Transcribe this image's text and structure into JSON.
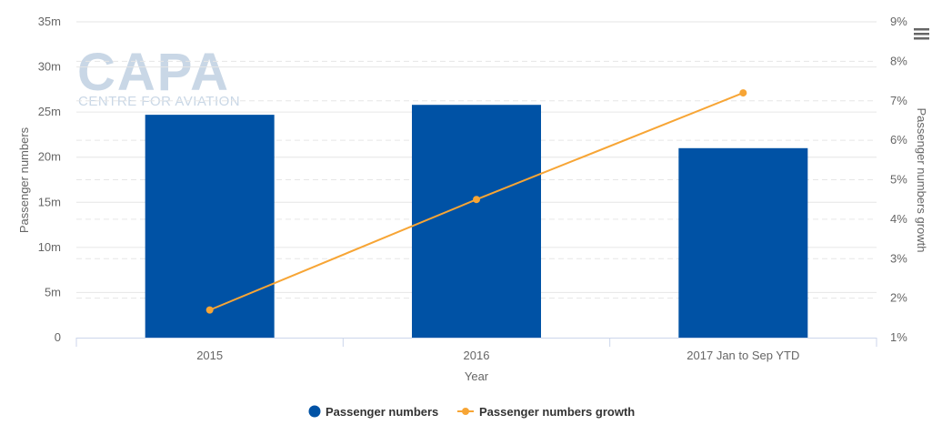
{
  "watermark": {
    "logo_text": "CAPA",
    "tagline": "CENTRE FOR AVIATION"
  },
  "menu_icon": "hamburger-menu-icon",
  "chart_data": {
    "type": "bar",
    "categories": [
      "2015",
      "2016",
      "2017 Jan to Sep YTD"
    ],
    "xlabel": "Year",
    "series": [
      {
        "name": "Passenger numbers",
        "type": "bar",
        "axis": "left",
        "color": "#0052a5",
        "values": [
          24700000,
          25800000,
          21000000
        ]
      },
      {
        "name": "Passenger numbers growth",
        "type": "line",
        "axis": "right",
        "color": "#f7a535",
        "values": [
          1.7,
          4.5,
          7.2
        ]
      }
    ],
    "y_left": {
      "label": "Passenger numbers",
      "range": [
        0,
        35000000
      ],
      "ticks": [
        0,
        5000000,
        10000000,
        15000000,
        20000000,
        25000000,
        30000000,
        35000000
      ],
      "tick_labels": [
        "0",
        "5m",
        "10m",
        "15m",
        "20m",
        "25m",
        "30m",
        "35m"
      ]
    },
    "y_right": {
      "label": "Passenger numbers growth",
      "range": [
        1,
        9
      ],
      "ticks": [
        1,
        2,
        3,
        4,
        5,
        6,
        7,
        8,
        9
      ],
      "tick_labels": [
        "1%",
        "2%",
        "3%",
        "4%",
        "5%",
        "6%",
        "7%",
        "8%",
        "9%"
      ]
    },
    "grid": true,
    "legend": "bottom-center"
  }
}
